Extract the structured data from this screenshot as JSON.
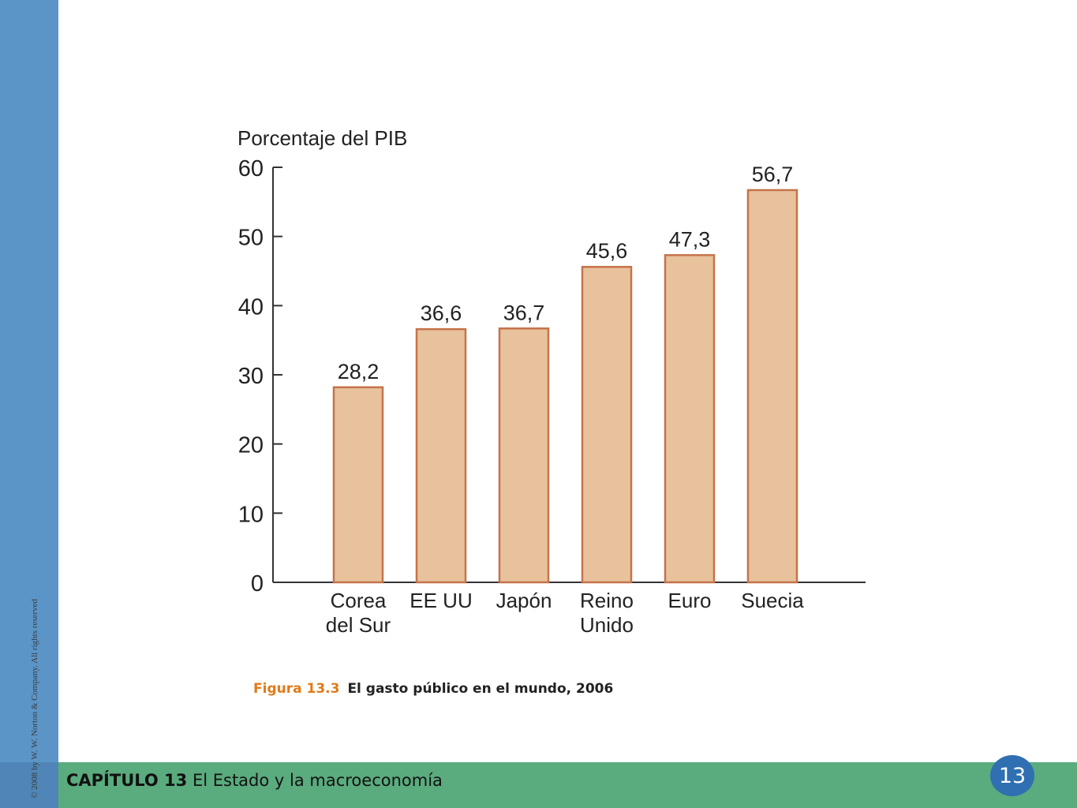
{
  "chart_data": {
    "type": "bar",
    "ylabel": "Porcentaje del PIB",
    "categories": [
      "Corea\ndel Sur",
      "EE UU",
      "Japón",
      "Reino\nUnido",
      "Euro",
      "Suecia"
    ],
    "values": [
      28.2,
      36.6,
      36.7,
      45.6,
      47.3,
      56.7
    ],
    "value_labels": [
      "28,2",
      "36,6",
      "36,7",
      "45,6",
      "47,3",
      "56,7"
    ],
    "yticks": [
      0,
      10,
      20,
      30,
      40,
      50,
      60
    ],
    "ylim": [
      0,
      60
    ],
    "grid": false,
    "colors": {
      "bar_fill": "#e8c29c",
      "bar_stroke": "#c5734a",
      "axis": "#333333"
    }
  },
  "caption": {
    "figure_number": "Figura 13.3",
    "title": "El gasto público en el mundo, 2006"
  },
  "footer": {
    "chapter_label": "CAPÍTULO 13",
    "chapter_title": "El Estado y la macroeconomía",
    "page_number": "13"
  },
  "sidebar": {
    "copyright": "© 2008 by W. W. Norton & Company. All rights reserved"
  }
}
